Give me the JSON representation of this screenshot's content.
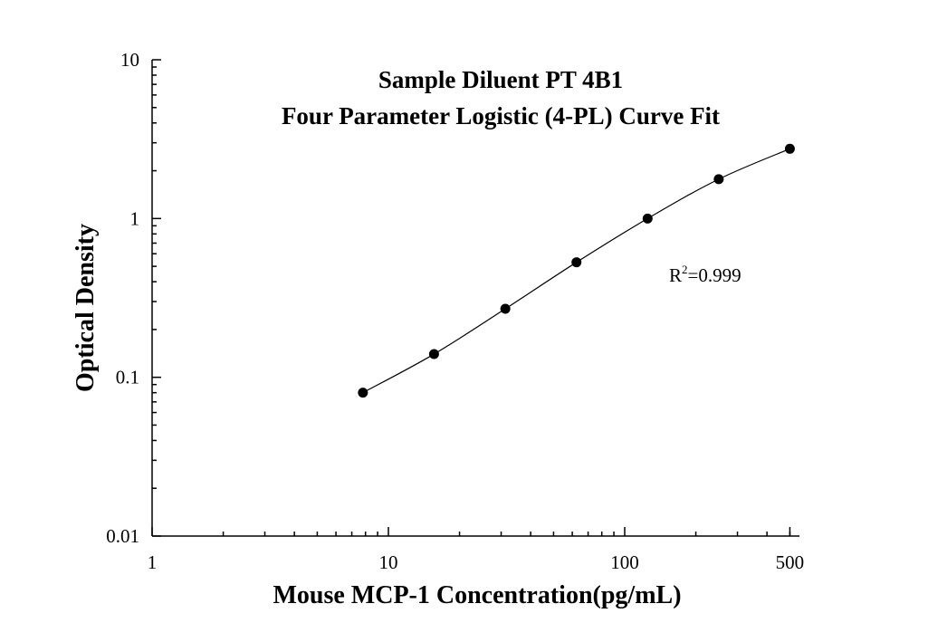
{
  "chart_data": {
    "type": "scatter",
    "title": "Sample Diluent PT 4B1",
    "subtitle": "Four Parameter Logistic (4-PL) Curve Fit",
    "xlabel": "Mouse MCP-1 Concentration(pg/mL)",
    "ylabel": "Optical Density",
    "x_scale": "log",
    "y_scale": "log",
    "xlim": [
      1,
      500
    ],
    "ylim": [
      0.01,
      10
    ],
    "x_ticks": [
      {
        "value": 1,
        "label": "1"
      },
      {
        "value": 10,
        "label": "10"
      },
      {
        "value": 100,
        "label": "100"
      },
      {
        "value": 500,
        "label": "500"
      }
    ],
    "y_ticks": [
      {
        "value": 0.01,
        "label": "0.01"
      },
      {
        "value": 0.1,
        "label": "0.1"
      },
      {
        "value": 1,
        "label": "1"
      },
      {
        "value": 10,
        "label": "10"
      }
    ],
    "x": [
      7.8,
      15.6,
      31.25,
      62.5,
      125,
      250,
      500
    ],
    "y": [
      0.08,
      0.14,
      0.27,
      0.53,
      1.0,
      1.77,
      2.75
    ],
    "fit": "4-PL curve",
    "annotation": {
      "r2_base": "R",
      "r2_sup": "2",
      "r2_value": "=0.999"
    },
    "grid": false,
    "colors": {
      "points": "#000000",
      "line": "#000000"
    }
  }
}
